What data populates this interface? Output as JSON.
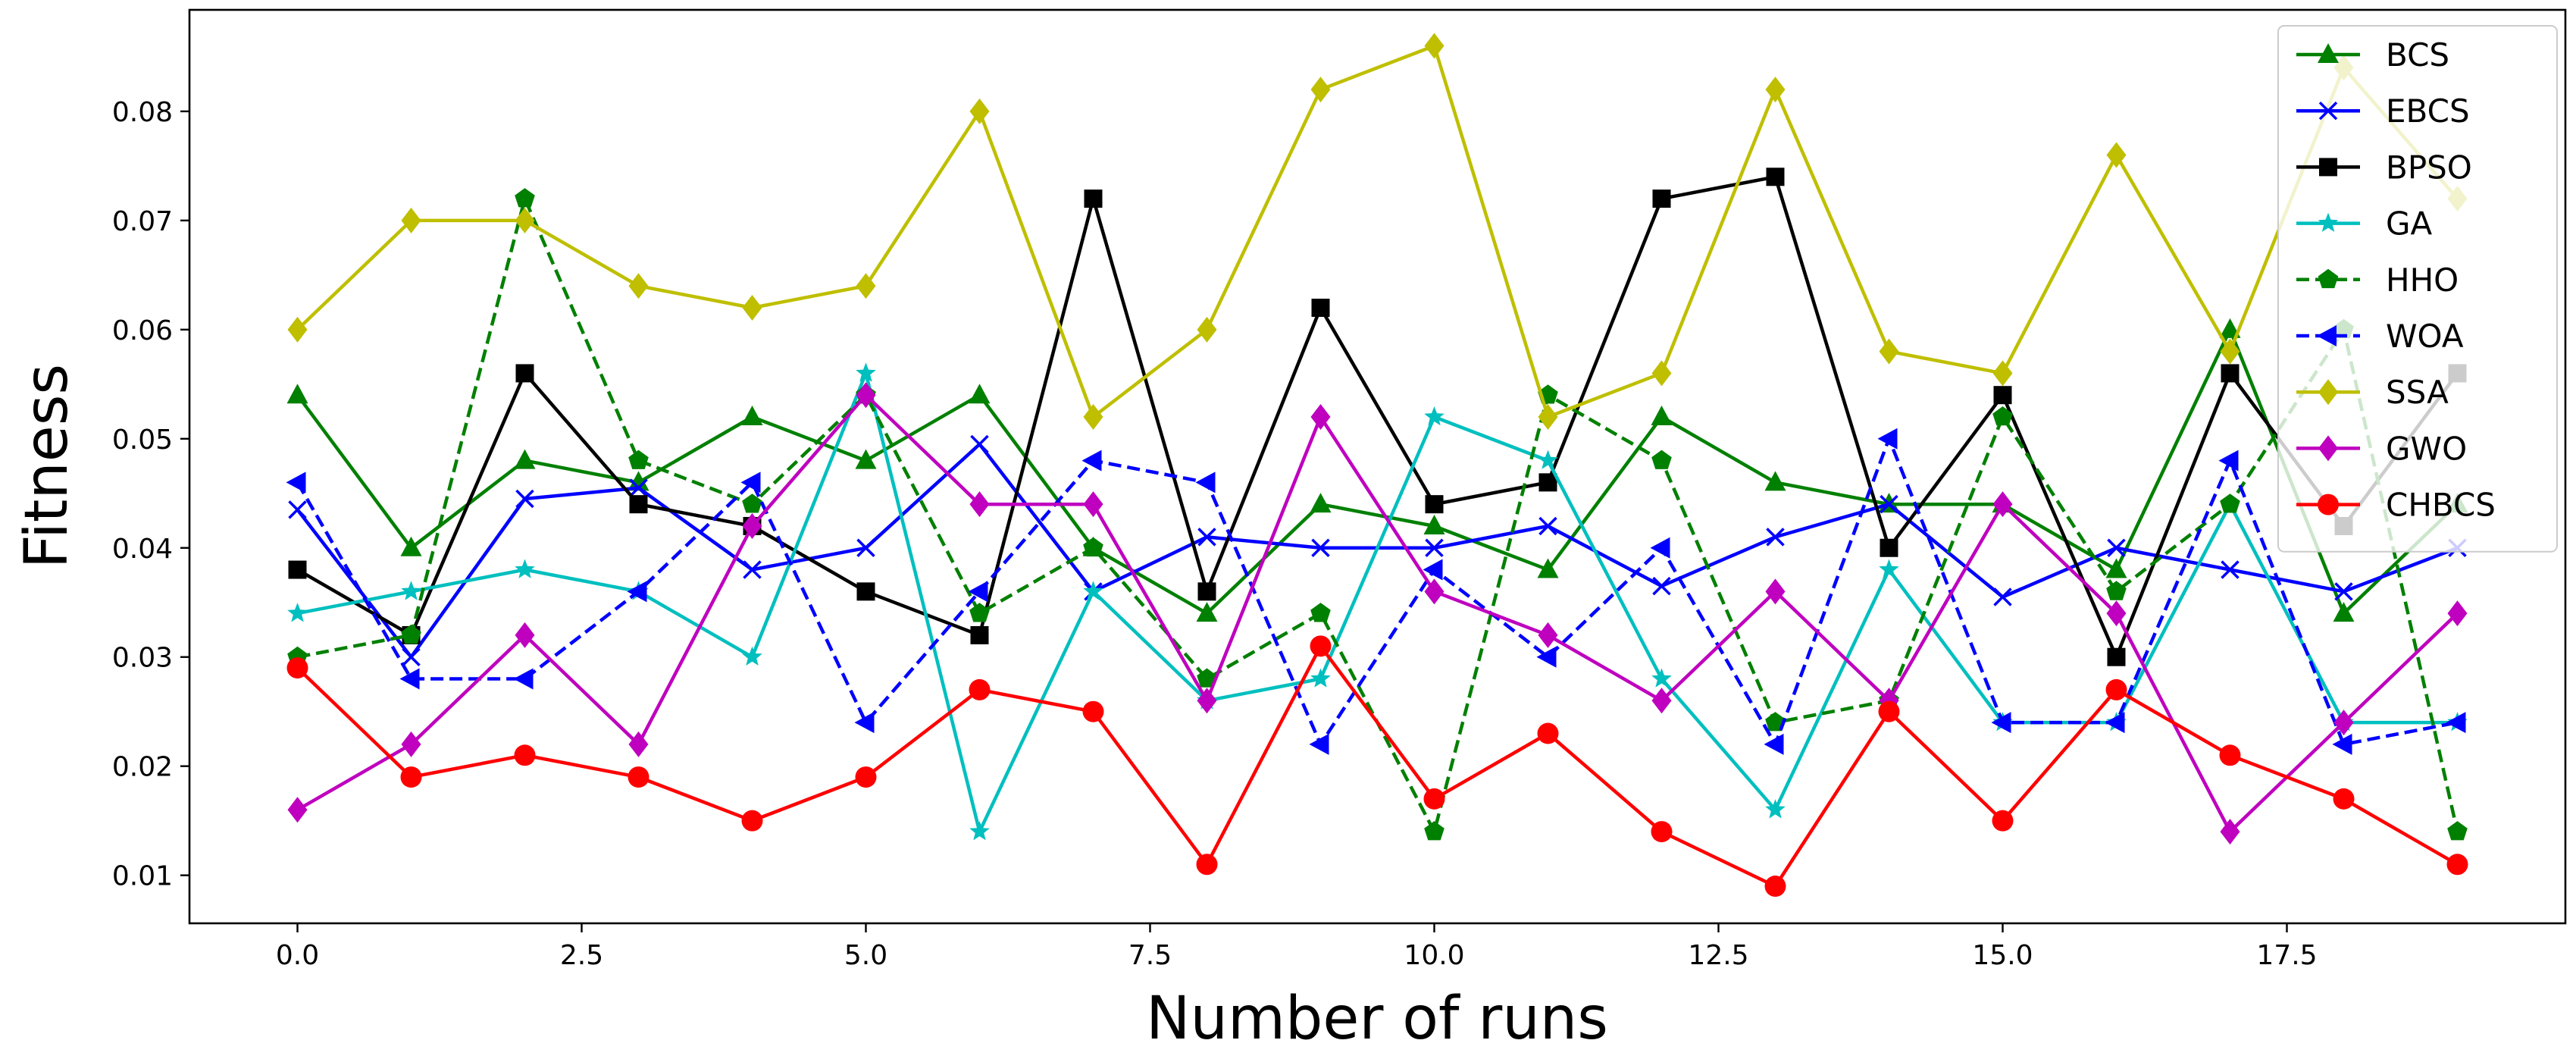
{
  "chart_data": {
    "type": "line",
    "title": "",
    "xlabel": "Number of runs",
    "ylabel": "Fitness",
    "xlim": [
      -0.95,
      19.95
    ],
    "ylim": [
      0.0056,
      0.0893
    ],
    "xticks": [
      0,
      2.5,
      5,
      7.5,
      10,
      12.5,
      15,
      17.5
    ],
    "xtick_labels": [
      "0.0",
      "2.5",
      "5.0",
      "7.5",
      "10.0",
      "12.5",
      "15.0",
      "17.5"
    ],
    "yticks": [
      0.01,
      0.02,
      0.03,
      0.04,
      0.05,
      0.06,
      0.07,
      0.08
    ],
    "ytick_labels": [
      "0.01",
      "0.02",
      "0.03",
      "0.04",
      "0.05",
      "0.06",
      "0.07",
      "0.08"
    ],
    "grid": false,
    "legend_position": "top-right",
    "x": [
      0,
      1,
      2,
      3,
      4,
      5,
      6,
      7,
      8,
      9,
      10,
      11,
      12,
      13,
      14,
      15,
      16,
      17,
      18,
      19
    ],
    "series": [
      {
        "name": "BCS",
        "color": "#008000",
        "dash": "solid",
        "marker": "triangle-up",
        "values": [
          0.054,
          0.04,
          0.048,
          0.046,
          0.052,
          0.048,
          0.054,
          0.04,
          0.034,
          0.044,
          0.042,
          0.038,
          0.052,
          0.046,
          0.044,
          0.044,
          0.038,
          0.06,
          0.034,
          0.044
        ]
      },
      {
        "name": "EBCS",
        "color": "#0000ff",
        "dash": "solid",
        "marker": "x",
        "values": [
          0.0435,
          0.03,
          0.0445,
          0.0455,
          0.038,
          0.04,
          0.0495,
          0.036,
          0.041,
          0.04,
          0.04,
          0.042,
          0.0365,
          0.041,
          0.044,
          0.0355,
          0.04,
          0.038,
          0.036,
          0.04
        ]
      },
      {
        "name": "BPSO",
        "color": "#000000",
        "dash": "solid",
        "marker": "square",
        "values": [
          0.038,
          0.032,
          0.056,
          0.044,
          0.042,
          0.036,
          0.032,
          0.072,
          0.036,
          0.062,
          0.044,
          0.046,
          0.072,
          0.074,
          0.04,
          0.054,
          0.03,
          0.056,
          0.042,
          0.056
        ]
      },
      {
        "name": "GA",
        "color": "#00bfbf",
        "dash": "solid",
        "marker": "star",
        "values": [
          0.034,
          0.036,
          0.038,
          0.036,
          0.03,
          0.056,
          0.014,
          0.036,
          0.026,
          0.028,
          0.052,
          0.048,
          0.028,
          0.016,
          0.038,
          0.024,
          0.024,
          0.044,
          0.024,
          0.024
        ]
      },
      {
        "name": "HHO",
        "color": "#008000",
        "dash": "dashed",
        "marker": "pentagon",
        "values": [
          0.03,
          0.032,
          0.072,
          0.048,
          0.044,
          0.054,
          0.034,
          0.04,
          0.028,
          0.034,
          0.014,
          0.054,
          0.048,
          0.024,
          0.026,
          0.052,
          0.036,
          0.044,
          0.06,
          0.014
        ]
      },
      {
        "name": "WOA",
        "color": "#0000ff",
        "dash": "dashed",
        "marker": "triangle-left",
        "values": [
          0.046,
          0.028,
          0.028,
          0.036,
          0.046,
          0.024,
          0.036,
          0.048,
          0.046,
          0.022,
          0.038,
          0.03,
          0.04,
          0.022,
          0.05,
          0.024,
          0.024,
          0.048,
          0.022,
          0.024
        ]
      },
      {
        "name": "SSA",
        "color": "#bfbf00",
        "dash": "solid",
        "marker": "diamond",
        "values": [
          0.06,
          0.07,
          0.07,
          0.064,
          0.062,
          0.064,
          0.08,
          0.052,
          0.06,
          0.082,
          0.086,
          0.052,
          0.056,
          0.082,
          0.058,
          0.056,
          0.076,
          0.058,
          0.084,
          0.072
        ]
      },
      {
        "name": "GWO",
        "color": "#bf00bf",
        "dash": "solid",
        "marker": "diamond",
        "values": [
          0.016,
          0.022,
          0.032,
          0.022,
          0.042,
          0.054,
          0.044,
          0.044,
          0.026,
          0.052,
          0.036,
          0.032,
          0.026,
          0.036,
          0.026,
          0.044,
          0.034,
          0.014,
          0.024,
          0.034
        ]
      },
      {
        "name": "CHBCS",
        "color": "#ff0000",
        "dash": "solid",
        "marker": "circle",
        "values": [
          0.029,
          0.019,
          0.021,
          0.019,
          0.015,
          0.019,
          0.027,
          0.025,
          0.011,
          0.031,
          0.017,
          0.023,
          0.014,
          0.009,
          0.025,
          0.015,
          0.027,
          0.021,
          0.017,
          0.011
        ]
      }
    ]
  }
}
